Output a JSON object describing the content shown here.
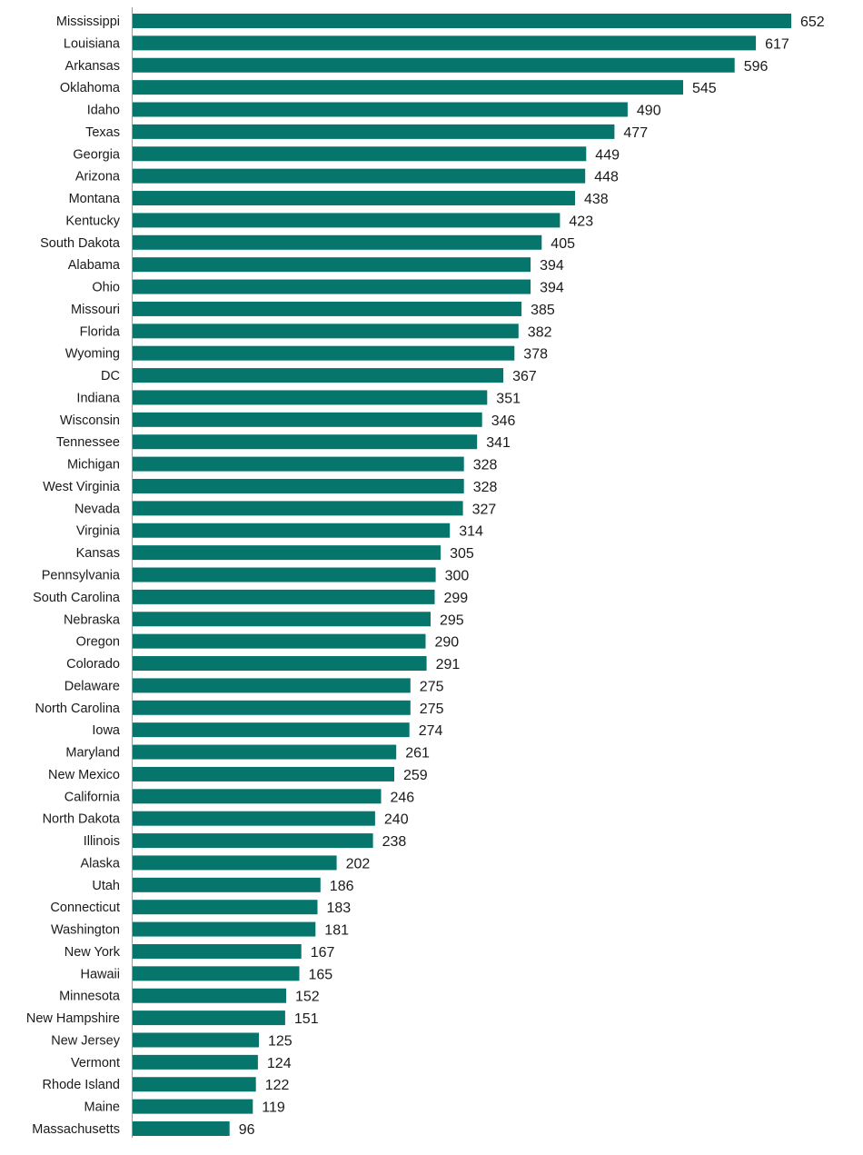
{
  "chart_data": {
    "type": "bar",
    "orientation": "horizontal",
    "title": "",
    "xlabel": "",
    "ylabel": "",
    "grid": false,
    "xlim": [
      0,
      652
    ],
    "bar_color": "#06766D",
    "categories": [
      "Mississippi",
      "Louisiana",
      "Arkansas",
      "Oklahoma",
      "Idaho",
      "Texas",
      "Georgia",
      "Arizona",
      "Montana",
      "Kentucky",
      "South Dakota",
      "Alabama",
      "Ohio",
      "Missouri",
      "Florida",
      "Wyoming",
      "DC",
      "Indiana",
      "Wisconsin",
      "Tennessee",
      "Michigan",
      "West Virginia",
      "Nevada",
      "Virginia",
      "Kansas",
      "Pennsylvania",
      "South Carolina",
      "Nebraska",
      "Oregon",
      "Colorado",
      "Delaware",
      "North Carolina",
      "Iowa",
      "Maryland",
      "New Mexico",
      "California",
      "North Dakota",
      "Illinois",
      "Alaska",
      "Utah",
      "Connecticut",
      "Washington",
      "New York",
      "Hawaii",
      "Minnesota",
      "New Hampshire",
      "New Jersey",
      "Vermont",
      "Rhode Island",
      "Maine",
      "Massachusetts"
    ],
    "values": [
      652,
      617,
      596,
      545,
      490,
      477,
      449,
      448,
      438,
      423,
      405,
      394,
      394,
      385,
      382,
      378,
      367,
      351,
      346,
      341,
      328,
      328,
      327,
      314,
      305,
      300,
      299,
      295,
      290,
      291,
      275,
      275,
      274,
      261,
      259,
      246,
      240,
      238,
      202,
      186,
      183,
      181,
      167,
      165,
      152,
      151,
      125,
      124,
      122,
      119,
      96
    ]
  }
}
